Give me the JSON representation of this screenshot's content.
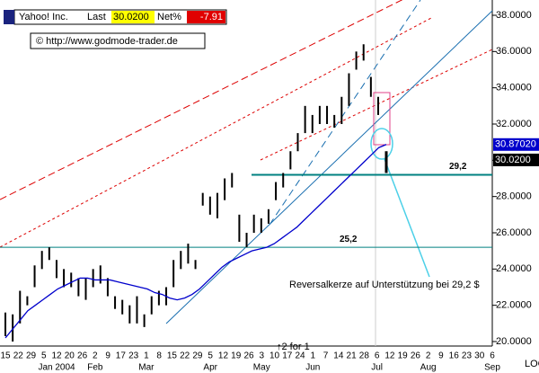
{
  "chart_data": {
    "type": "range_bar",
    "header": {
      "name": "Yahoo! Inc.",
      "last_label": "Last",
      "last": "30.0200",
      "net_label": "Net%",
      "net": "-7.91",
      "copyright": "© http://www.godmode-trader.de"
    },
    "high": [
      21.6,
      21.5,
      22.8,
      22.5,
      24.2,
      25.0,
      25.2,
      24.5,
      24.0,
      23.8,
      23.5,
      23.5,
      24.0,
      24.2,
      23.5,
      22.5,
      22.3,
      22.0,
      22.5,
      21.5,
      22.5,
      22.8,
      23.0,
      24.5,
      25.0,
      25.4,
      24.5,
      28.2,
      28.0,
      28.2,
      29.0,
      29.3,
      27.0,
      26.0,
      27.0,
      26.8,
      27.3,
      28.8,
      29.3,
      30.5,
      31.5,
      33.0,
      32.5,
      33.0,
      33.0,
      32.5,
      33.5,
      34.8,
      36.0,
      36.4,
      34.6,
      33.5
    ],
    "low": [
      20.3,
      20.0,
      21.0,
      22.0,
      23.0,
      24.0,
      24.5,
      23.5,
      23.0,
      23.0,
      22.5,
      22.3,
      23.0,
      23.2,
      22.5,
      21.8,
      21.5,
      21.0,
      21.0,
      20.8,
      21.5,
      22.0,
      22.0,
      23.0,
      24.0,
      24.3,
      24.0,
      27.5,
      27.0,
      26.8,
      27.8,
      28.5,
      25.5,
      25.2,
      26.0,
      26.0,
      26.5,
      27.8,
      28.5,
      29.5,
      30.5,
      31.5,
      31.5,
      32.0,
      32.0,
      31.8,
      32.0,
      33.0,
      35.0,
      35.5,
      33.5,
      32.5
    ],
    "last_bar": {
      "high": 30.5,
      "low": 29.3
    },
    "ma": {
      "color": "#0000cc",
      "values": [
        20.2,
        20.7,
        21.2,
        21.7,
        22.0,
        22.3,
        22.6,
        22.9,
        23.1,
        23.3,
        23.5,
        23.5,
        23.4,
        23.4,
        23.4,
        23.3,
        23.2,
        23.1,
        23.0,
        22.9,
        22.7,
        22.6,
        22.4,
        22.3,
        22.4,
        22.6,
        22.9,
        23.3,
        23.7,
        24.1,
        24.4,
        24.6,
        24.8,
        25.0,
        25.1,
        25.2,
        25.4,
        25.7,
        26.0,
        26.3,
        26.7,
        27.1,
        27.5,
        27.9,
        28.3,
        28.7,
        29.1,
        29.5,
        29.9,
        30.3,
        30.7,
        30.87
      ]
    },
    "hlines": [
      {
        "value": 29.2,
        "label": "29,2"
      },
      {
        "value": 25.2,
        "label": "25,2"
      }
    ],
    "price_tags": [
      {
        "value": 30.8702,
        "label": "30.87020",
        "color": "#0000cc"
      },
      {
        "value": 30.02,
        "label": "30.0200",
        "color": "#000"
      }
    ],
    "ylim": [
      20,
      38
    ],
    "log_label": "LOG",
    "yticks": [
      {
        "value": 20,
        "label": "20.0000"
      },
      {
        "value": 22,
        "label": "22.0000"
      },
      {
        "value": 24,
        "label": "24.0000"
      },
      {
        "value": 26,
        "label": "26.0000"
      },
      {
        "value": 28,
        "label": "28.0000"
      },
      {
        "value": 30,
        "label": "30.0000"
      },
      {
        "value": 32,
        "label": "32.0000"
      },
      {
        "value": 34,
        "label": "34.0000"
      },
      {
        "value": 36,
        "label": "36.0000"
      },
      {
        "value": 38,
        "label": "38.0000"
      }
    ],
    "day_labels": [
      "15",
      "22",
      "29",
      "5",
      "12",
      "20",
      "26",
      "2",
      "9",
      "17",
      "23",
      "1",
      "8",
      "15",
      "22",
      "29",
      "5",
      "12",
      "19",
      "26",
      "3",
      "10",
      "17",
      "24",
      "1",
      "7",
      "14",
      "21",
      "28",
      "6",
      "12",
      "19",
      "26",
      "2",
      "9",
      "16",
      "23",
      "30",
      "6"
    ],
    "month_labels": [
      "Jan 2004",
      "Feb",
      "Mar",
      "Apr",
      "May",
      "Jun",
      "Jul",
      "Aug",
      "Sep"
    ],
    "annotation": "Reversalkerze auf Unterstützung bei 29,2 $",
    "split": "↑2 for 1"
  }
}
